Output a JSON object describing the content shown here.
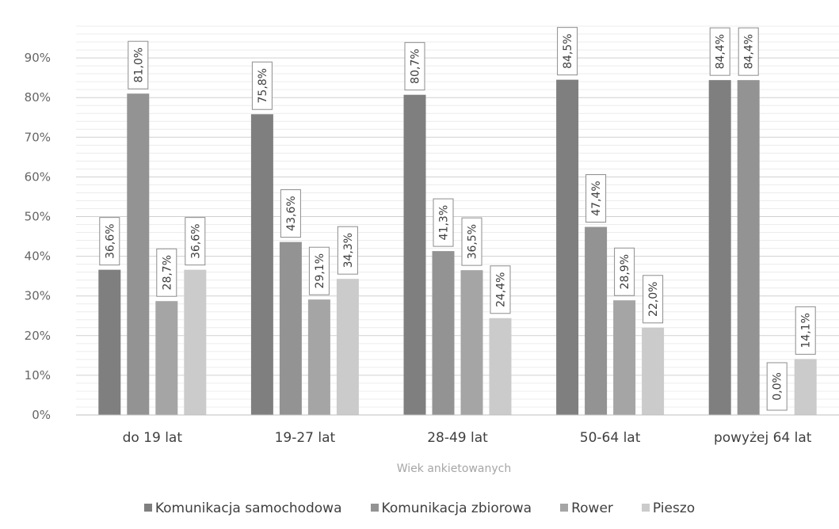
{
  "chart_data": {
    "type": "bar",
    "categories": [
      "do 19 lat",
      "19-27 lat",
      "28-49 lat",
      "50-64 lat",
      "powyżej 64 lat"
    ],
    "series": [
      {
        "name": "Komunikacja samochodowa",
        "color": "#7f7f7f",
        "values": [
          36.6,
          75.8,
          80.7,
          84.5,
          84.4
        ],
        "labels": [
          "36,6%",
          "75,8%",
          "80,7%",
          "84,5%",
          "84,4%"
        ]
      },
      {
        "name": "Komunikacja zbiorowa",
        "color": "#939393",
        "values": [
          81.0,
          43.6,
          41.3,
          47.4,
          84.4
        ],
        "labels": [
          "81,0%",
          "43,6%",
          "41,3%",
          "47,4%",
          "84,4%"
        ]
      },
      {
        "name": "Rower",
        "color": "#a5a5a5",
        "values": [
          28.7,
          29.1,
          36.5,
          28.9,
          0.0
        ],
        "labels": [
          "28,7%",
          "29,1%",
          "36,5%",
          "28,9%",
          "0,0%"
        ]
      },
      {
        "name": "Pieszo",
        "color": "#cbcbcb",
        "values": [
          36.6,
          34.3,
          24.4,
          22.0,
          14.1
        ],
        "labels": [
          "36,6%",
          "34,3%",
          "24,4%",
          "22,0%",
          "14,1%"
        ]
      }
    ],
    "y_ticks": [
      "0%",
      "10%",
      "20%",
      "30%",
      "40%",
      "50%",
      "60%",
      "70%",
      "80%",
      "90%"
    ],
    "ylim": [
      0,
      100
    ],
    "xlabel": "Wiek ankietowanych",
    "ylabel": "",
    "title": "",
    "grid": true,
    "legend_position": "bottom"
  }
}
